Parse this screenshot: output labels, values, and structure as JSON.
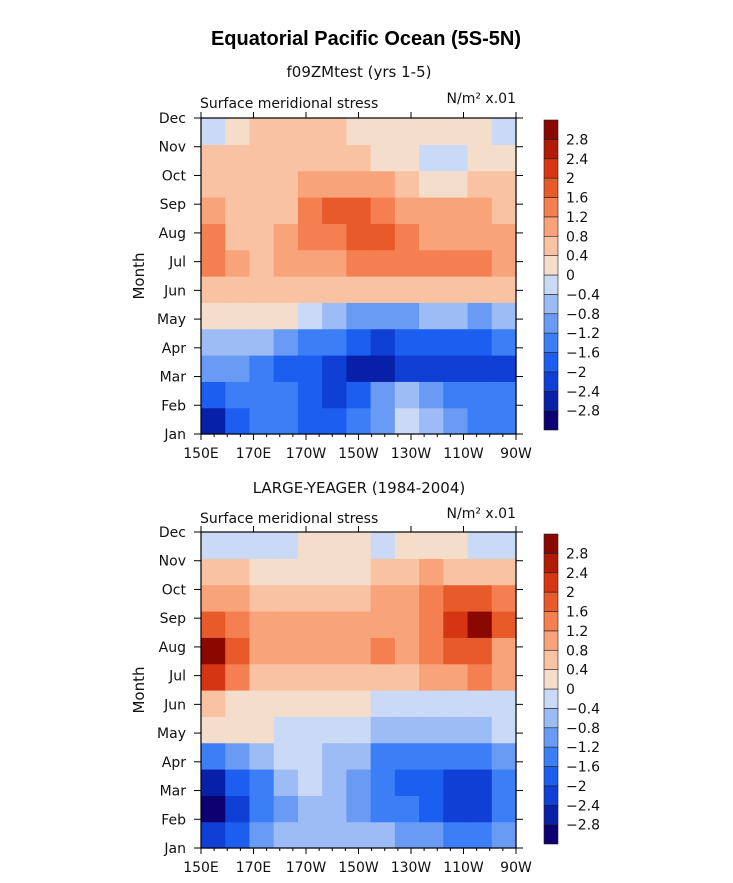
{
  "page_title": "Equatorial Pacific Ocean (5S-5N)",
  "chart_data": [
    {
      "type": "heatmap",
      "title": "f09ZMtest (yrs 1-5)",
      "subtitle": "Surface meridional stress",
      "units": "N/m² x.01",
      "xlabel": "",
      "ylabel": "Month",
      "x_tick_labels": [
        "150E",
        "170E",
        "170W",
        "150W",
        "130W",
        "110W",
        "90W"
      ],
      "x_values": [
        150,
        170,
        190,
        210,
        230,
        250,
        270
      ],
      "y_tick_labels": [
        "Jan",
        "Feb",
        "Mar",
        "Apr",
        "May",
        "Jun",
        "Jul",
        "Aug",
        "Sep",
        "Oct",
        "Nov",
        "Dec"
      ],
      "columns": [
        "150E",
        "160E",
        "170E",
        "180",
        "170W",
        "160W",
        "150W",
        "140W",
        "130W",
        "120W",
        "110W",
        "100W",
        "90W"
      ],
      "values": [
        [
          -2.6,
          -1.8,
          -1.4,
          -1.5,
          -1.8,
          -2.0,
          -1.4,
          -0.9,
          -0.2,
          -0.6,
          -1.2,
          -1.3,
          -1.4
        ],
        [
          -2.0,
          -1.6,
          -1.4,
          -1.6,
          -2.0,
          -2.2,
          -1.8,
          -1.2,
          -0.8,
          -1.0,
          -1.5,
          -1.5,
          -1.6
        ],
        [
          -1.2,
          -1.2,
          -1.5,
          -1.8,
          -2.0,
          -2.2,
          -2.6,
          -2.6,
          -2.4,
          -2.2,
          -2.2,
          -2.2,
          -2.1
        ],
        [
          -0.6,
          -0.5,
          -0.7,
          -1.0,
          -1.3,
          -1.5,
          -1.9,
          -2.1,
          -2.0,
          -1.8,
          -1.8,
          -1.7,
          -1.6
        ],
        [
          0.3,
          0.3,
          0.2,
          0.0,
          -0.3,
          -0.6,
          -0.9,
          -1.0,
          -0.9,
          -0.8,
          -0.8,
          -0.9,
          -0.6
        ],
        [
          0.6,
          0.6,
          0.5,
          0.5,
          0.5,
          0.5,
          0.5,
          0.4,
          0.4,
          0.5,
          0.5,
          0.6,
          0.5
        ],
        [
          1.3,
          0.8,
          0.7,
          0.8,
          1.0,
          1.1,
          1.2,
          1.2,
          1.3,
          1.2,
          1.3,
          1.4,
          0.9
        ],
        [
          1.4,
          0.7,
          0.7,
          0.8,
          1.2,
          1.4,
          1.6,
          1.6,
          1.2,
          1.0,
          1.0,
          1.0,
          0.8
        ],
        [
          0.8,
          0.6,
          0.6,
          0.7,
          1.2,
          1.6,
          1.7,
          1.4,
          1.0,
          0.8,
          0.8,
          0.9,
          0.7
        ],
        [
          0.6,
          0.5,
          0.5,
          0.6,
          0.9,
          1.0,
          1.0,
          0.9,
          0.6,
          0.3,
          0.3,
          0.5,
          0.5
        ],
        [
          0.4,
          0.4,
          0.5,
          0.5,
          0.5,
          0.5,
          0.4,
          0.3,
          0.1,
          -0.2,
          -0.2,
          0.2,
          0.3
        ],
        [
          -0.1,
          0.3,
          0.4,
          0.4,
          0.4,
          0.4,
          0.3,
          0.3,
          0.2,
          0.2,
          0.2,
          0.2,
          -0.1
        ]
      ]
    },
    {
      "type": "heatmap",
      "title": "LARGE-YEAGER (1984-2004)",
      "subtitle": "Surface meridional stress",
      "units": "N/m² x.01",
      "xlabel": "",
      "ylabel": "Month",
      "x_tick_labels": [
        "150E",
        "170E",
        "170W",
        "150W",
        "130W",
        "110W",
        "90W"
      ],
      "x_values": [
        150,
        170,
        190,
        210,
        230,
        250,
        270
      ],
      "y_tick_labels": [
        "Jan",
        "Feb",
        "Mar",
        "Apr",
        "May",
        "Jun",
        "Jul",
        "Aug",
        "Sep",
        "Oct",
        "Nov",
        "Dec"
      ],
      "columns": [
        "150E",
        "160E",
        "170E",
        "180",
        "170W",
        "160W",
        "150W",
        "140W",
        "130W",
        "120W",
        "110W",
        "100W",
        "90W"
      ],
      "values": [
        [
          -2.4,
          -2.0,
          -1.2,
          -0.8,
          -0.5,
          -0.5,
          -0.6,
          -0.8,
          -0.9,
          -1.1,
          -1.3,
          -1.5,
          -1.2
        ],
        [
          -3.0,
          -2.2,
          -1.5,
          -1.0,
          -0.6,
          -0.7,
          -1.0,
          -1.3,
          -1.4,
          -1.8,
          -2.1,
          -2.3,
          -1.6
        ],
        [
          -2.6,
          -2.0,
          -1.4,
          -0.8,
          -0.4,
          -0.6,
          -1.2,
          -1.6,
          -1.7,
          -1.9,
          -2.2,
          -2.4,
          -1.6
        ],
        [
          -1.4,
          -0.9,
          -0.6,
          -0.4,
          -0.3,
          -0.5,
          -0.8,
          -1.3,
          -1.4,
          -1.5,
          -1.6,
          -1.6,
          -1.2
        ],
        [
          0.2,
          0.2,
          0.1,
          -0.1,
          -0.2,
          -0.3,
          -0.4,
          -0.5,
          -0.5,
          -0.6,
          -0.6,
          -0.6,
          -0.4
        ],
        [
          0.4,
          0.3,
          0.2,
          0.1,
          0.1,
          0.1,
          0.1,
          -0.1,
          -0.1,
          -0.1,
          -0.2,
          -0.1,
          -0.1
        ],
        [
          2.0,
          1.2,
          0.6,
          0.4,
          0.4,
          0.5,
          0.5,
          0.5,
          0.6,
          0.8,
          1.0,
          1.2,
          0.8
        ],
        [
          3.0,
          1.6,
          1.0,
          0.8,
          0.8,
          1.0,
          1.0,
          1.2,
          0.9,
          1.4,
          1.8,
          1.9,
          1.0
        ],
        [
          1.8,
          1.5,
          0.9,
          0.8,
          0.8,
          0.9,
          0.9,
          0.9,
          0.8,
          1.5,
          2.2,
          2.8,
          1.6
        ],
        [
          1.0,
          0.9,
          0.7,
          0.7,
          0.6,
          0.5,
          0.6,
          0.8,
          0.9,
          1.4,
          1.8,
          1.7,
          1.2
        ],
        [
          0.4,
          0.4,
          0.3,
          0.2,
          0.2,
          0.1,
          0.2,
          0.4,
          0.6,
          0.8,
          0.6,
          0.5,
          0.4
        ],
        [
          -0.2,
          -0.3,
          -0.3,
          -0.1,
          0.1,
          0.1,
          0.0,
          -0.1,
          0.1,
          0.2,
          0.0,
          -0.2,
          -0.3
        ]
      ]
    }
  ],
  "colorbar": {
    "tick_labels": [
      "2.8",
      "2.4",
      "2",
      "1.6",
      "1.2",
      "0.8",
      "0.4",
      "0",
      "−0.4",
      "−0.8",
      "−1.2",
      "−1.6",
      "−2",
      "−2.4",
      "−2.8"
    ],
    "levels": [
      -2.8,
      -2.4,
      -2.0,
      -1.6,
      -1.2,
      -0.8,
      -0.4,
      0.0,
      0.4,
      0.8,
      1.2,
      1.6,
      2.0,
      2.4,
      2.8
    ],
    "colors": [
      "#0d0070",
      "#0820a8",
      "#0f3fd5",
      "#1c5eef",
      "#3c7ef6",
      "#6a9bf4",
      "#9dbbf4",
      "#c9d9f6",
      "#f5ddcc",
      "#f9c2a2",
      "#f9a37b",
      "#f47f51",
      "#e95a2a",
      "#d53512",
      "#b31a05",
      "#8a0800"
    ]
  }
}
